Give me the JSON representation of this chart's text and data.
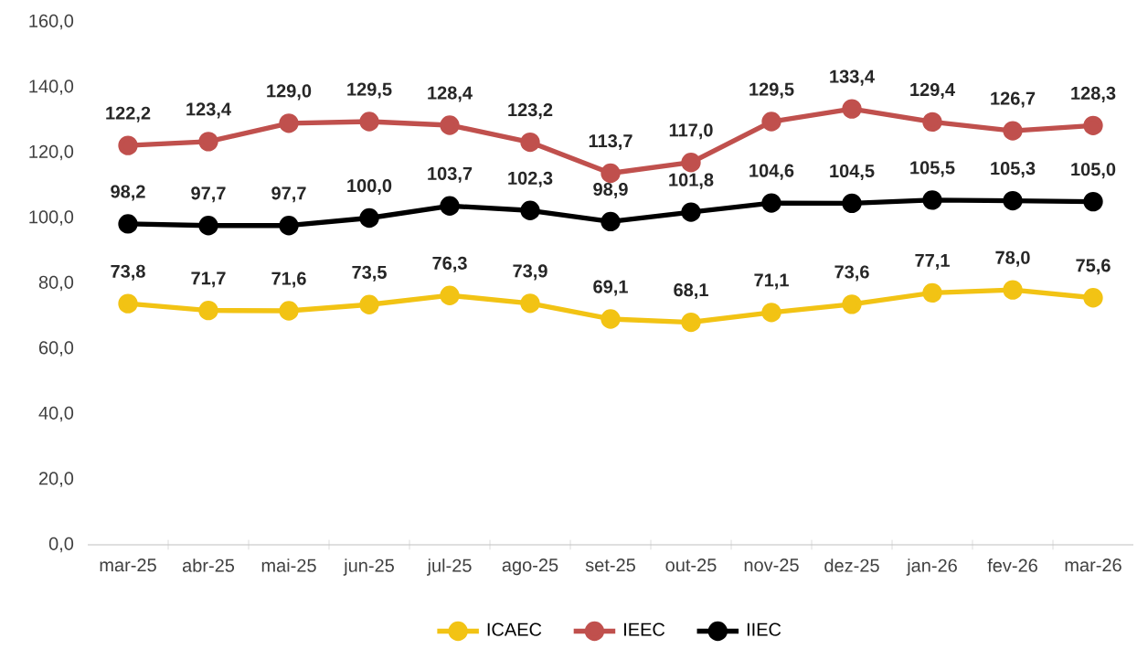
{
  "chart_data": {
    "type": "line",
    "categories": [
      "mar-25",
      "abr-25",
      "mai-25",
      "jun-25",
      "jul-25",
      "ago-25",
      "set-25",
      "out-25",
      "nov-25",
      "dez-25",
      "jan-26",
      "fev-26",
      "mar-26"
    ],
    "series": [
      {
        "name": "ICAEC",
        "color": "#f2c314",
        "values": [
          73.8,
          71.7,
          71.6,
          73.5,
          76.3,
          73.9,
          69.1,
          68.1,
          71.1,
          73.6,
          77.1,
          78.0,
          75.6
        ],
        "value_labels": [
          "73,8",
          "71,7",
          "71,6",
          "73,5",
          "76,3",
          "73,9",
          "69,1",
          "68,1",
          "71,1",
          "73,6",
          "77,1",
          "78,0",
          "75,6"
        ]
      },
      {
        "name": "IEEC",
        "color": "#c0504d",
        "values": [
          122.2,
          123.4,
          129.0,
          129.5,
          128.4,
          123.2,
          113.7,
          117.0,
          129.5,
          133.4,
          129.4,
          126.7,
          128.3
        ],
        "value_labels": [
          "122,2",
          "123,4",
          "129,0",
          "129,5",
          "128,4",
          "123,2",
          "113,7",
          "117,0",
          "129,5",
          "133,4",
          "129,4",
          "126,7",
          "128,3"
        ]
      },
      {
        "name": "IIEC",
        "color": "#000000",
        "values": [
          98.2,
          97.7,
          97.7,
          100.0,
          103.7,
          102.3,
          98.9,
          101.8,
          104.6,
          104.5,
          105.5,
          105.3,
          105.0
        ],
        "value_labels": [
          "98,2",
          "97,7",
          "97,7",
          "100,0",
          "103,7",
          "102,3",
          "98,9",
          "101,8",
          "104,6",
          "104,5",
          "105,5",
          "105,3",
          "105,0"
        ]
      }
    ],
    "ylim": [
      0,
      160
    ],
    "yticks": [
      {
        "value": 0,
        "label": "0,0"
      },
      {
        "value": 20,
        "label": "20,0"
      },
      {
        "value": 40,
        "label": "40,0"
      },
      {
        "value": 60,
        "label": "60,0"
      },
      {
        "value": 80,
        "label": "80,0"
      },
      {
        "value": 100,
        "label": "100,0"
      },
      {
        "value": 120,
        "label": "120,0"
      },
      {
        "value": 140,
        "label": "140,0"
      },
      {
        "value": 160,
        "label": "160,0"
      }
    ],
    "grid": false,
    "legend": "bottom",
    "marker": "circle",
    "line_style": "solid"
  }
}
